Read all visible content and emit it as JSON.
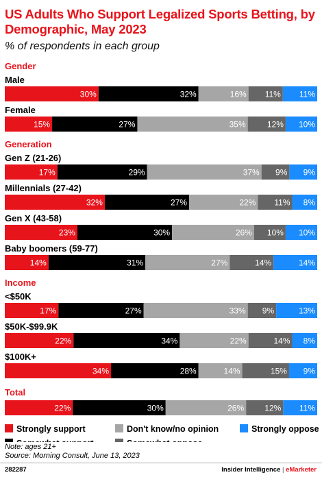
{
  "title": "US Adults Who Support Legalized Sports Betting, by Demographic, May 2023",
  "subtitle": "% of respondents in each group",
  "note": "Note: ages 21+",
  "source": "Source: Morning Consult, June 13, 2023",
  "footer": {
    "id": "282287",
    "brand_part1": "Insider Intelligence",
    "separator": "|",
    "brand_part2": "eMarketer"
  },
  "chart_data": {
    "type": "bar",
    "orientation": "horizontal",
    "stacked": true,
    "unit": "%",
    "legend_position": "bottom",
    "series": [
      {
        "name": "Strongly support",
        "color": "#e8141c"
      },
      {
        "name": "Somewhat support",
        "color": "#000000"
      },
      {
        "name": "Don't know/no opinion",
        "color": "#a6a6a6"
      },
      {
        "name": "Somewhat oppose",
        "color": "#666666"
      },
      {
        "name": "Strongly oppose",
        "color": "#1a8cff"
      }
    ],
    "groups": [
      {
        "name": "Gender",
        "rows": [
          {
            "label": "Male",
            "values": [
              30,
              32,
              16,
              11,
              11
            ]
          },
          {
            "label": "Female",
            "values": [
              15,
              27,
              35,
              12,
              10
            ]
          }
        ]
      },
      {
        "name": "Generation",
        "rows": [
          {
            "label": "Gen Z (21-26)",
            "values": [
              17,
              29,
              37,
              9,
              9
            ]
          },
          {
            "label": "Millennials (27-42)",
            "values": [
              32,
              27,
              22,
              11,
              8
            ]
          },
          {
            "label": "Gen X (43-58)",
            "values": [
              23,
              30,
              26,
              10,
              10
            ]
          },
          {
            "label": "Baby boomers (59-77)",
            "values": [
              14,
              31,
              27,
              14,
              14
            ]
          }
        ]
      },
      {
        "name": "Income",
        "rows": [
          {
            "label": "<$50K",
            "values": [
              17,
              27,
              33,
              9,
              13
            ]
          },
          {
            "label": "$50K-$99.9K",
            "values": [
              22,
              34,
              22,
              14,
              8
            ]
          },
          {
            "label": "$100K+",
            "values": [
              34,
              28,
              14,
              15,
              9
            ]
          }
        ]
      },
      {
        "name": "Total",
        "rows": [
          {
            "label": "",
            "values": [
              22,
              30,
              26,
              12,
              11
            ]
          }
        ]
      }
    ]
  }
}
